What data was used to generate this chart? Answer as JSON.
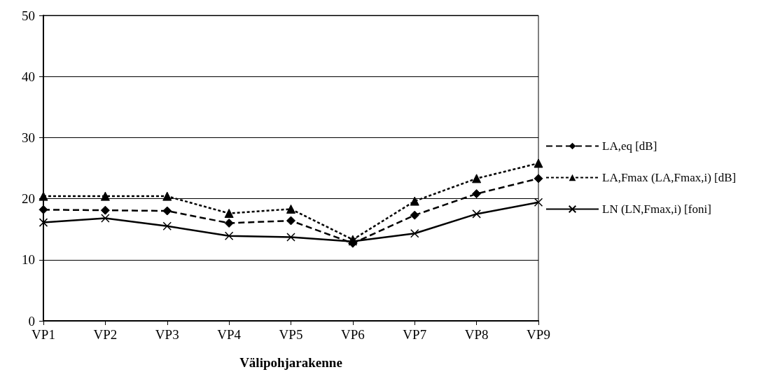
{
  "chart_data": {
    "type": "line",
    "xlabel": "Välipohjarakenne",
    "categories": [
      "VP1",
      "VP2",
      "VP3",
      "VP4",
      "VP5",
      "VP6",
      "VP7",
      "VP8",
      "VP9"
    ],
    "ylim": [
      0,
      50
    ],
    "yticks": [
      0,
      10,
      20,
      30,
      40,
      50
    ],
    "grid": "y",
    "legend": "right",
    "series": [
      {
        "name": "LA,eq [dB]",
        "color": "#000000",
        "marker": "diamond",
        "line_style": "dashed",
        "values": [
          18.2,
          18.1,
          18.0,
          16.0,
          16.4,
          12.7,
          17.3,
          20.8,
          23.3
        ]
      },
      {
        "name": "LA,Fmax (LA,Fmax,i) [dB]",
        "color": "#000000",
        "marker": "triangle",
        "line_style": "dotted",
        "values": [
          20.4,
          20.4,
          20.4,
          17.6,
          18.3,
          13.3,
          19.6,
          23.3,
          25.8
        ]
      },
      {
        "name": "LN (LN,Fmax,i) [foni]",
        "color": "#000000",
        "marker": "cross",
        "line_style": "solid",
        "values": [
          16.1,
          16.8,
          15.5,
          13.9,
          13.7,
          13.0,
          14.3,
          17.5,
          19.4
        ]
      }
    ]
  }
}
